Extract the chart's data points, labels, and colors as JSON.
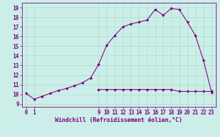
{
  "xlabel": "Windchill (Refroidissement éolien,°C)",
  "bg_color": "#cceee8",
  "line_color": "#800080",
  "x_main": [
    0,
    1,
    2,
    3,
    4,
    5,
    6,
    7,
    8,
    9,
    10,
    11,
    12,
    13,
    14,
    15,
    16,
    17,
    18,
    19,
    20,
    21,
    22,
    23
  ],
  "y_main": [
    10.1,
    9.5,
    9.8,
    10.1,
    10.4,
    10.6,
    10.9,
    11.2,
    11.7,
    13.1,
    15.1,
    16.1,
    17.0,
    17.3,
    17.5,
    17.7,
    18.8,
    18.2,
    18.9,
    18.8,
    17.5,
    16.1,
    13.5,
    10.2
  ],
  "x_flat": [
    9,
    10,
    11,
    12,
    13,
    14,
    15,
    16,
    17,
    18,
    19,
    20,
    21,
    22,
    23
  ],
  "y_flat": [
    10.5,
    10.5,
    10.5,
    10.5,
    10.5,
    10.5,
    10.5,
    10.5,
    10.5,
    10.5,
    10.3,
    10.3,
    10.3,
    10.3,
    10.3
  ],
  "xticks": [
    0,
    1,
    9,
    10,
    11,
    12,
    13,
    14,
    15,
    16,
    17,
    18,
    19,
    20,
    21,
    22,
    23
  ],
  "yticks": [
    9,
    10,
    11,
    12,
    13,
    14,
    15,
    16,
    17,
    18,
    19
  ],
  "xlim": [
    -0.5,
    23.5
  ],
  "ylim": [
    8.7,
    19.5
  ],
  "grid_color": "#aaddcc",
  "markersize": 2.0,
  "linewidth": 0.8,
  "font_color": "#800080",
  "font_size": 5.5,
  "label_fontsize": 6.0
}
